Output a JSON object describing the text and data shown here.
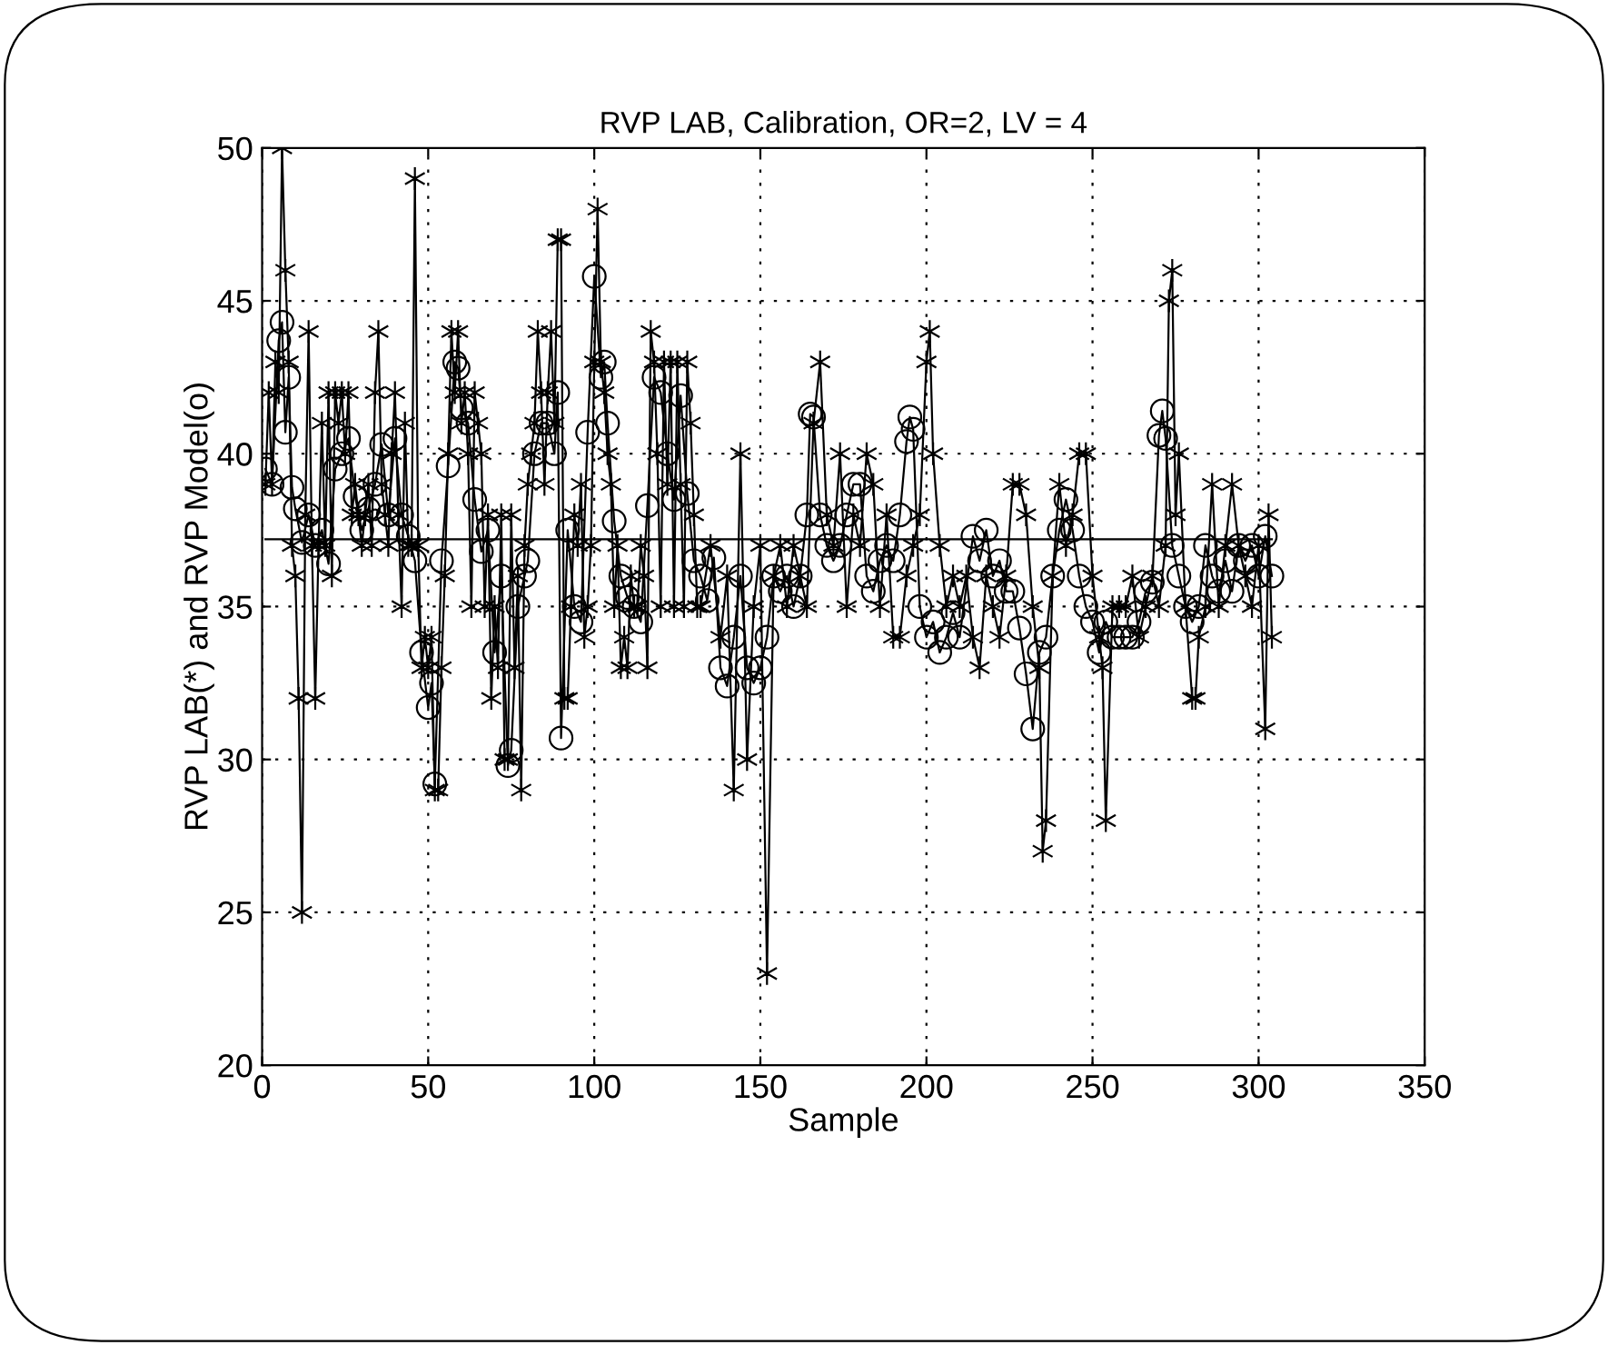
{
  "chart_data": {
    "type": "line",
    "title": "RVP LAB, Calibration, OR=2, LV = 4",
    "xlabel": "Sample",
    "ylabel": "RVP LAB(*) and RVP Model(o)",
    "xlim": [
      0,
      350
    ],
    "ylim": [
      20,
      50
    ],
    "xticks": [
      0,
      50,
      100,
      150,
      200,
      250,
      300,
      350
    ],
    "yticks": [
      20,
      25,
      30,
      35,
      40,
      45,
      50
    ],
    "grid": true,
    "line_style": "solid",
    "series": [
      {
        "color": "#000000",
        "marker": "cross",
        "x": [
          1,
          2,
          3,
          4,
          5,
          6,
          7,
          8,
          9,
          10,
          11,
          12,
          13,
          14,
          15,
          16,
          17,
          18,
          19,
          20,
          21,
          22,
          23,
          24,
          25,
          26,
          27,
          28,
          29,
          30,
          31,
          32,
          33,
          34,
          35,
          36,
          37,
          38,
          39,
          40,
          41,
          42,
          43,
          44,
          45,
          46,
          47,
          48,
          49,
          50,
          51,
          52,
          53,
          54,
          55,
          56,
          57,
          58,
          59,
          60,
          61,
          62,
          63,
          64,
          65,
          66,
          67,
          68,
          69,
          70,
          71,
          72,
          73,
          74,
          75,
          76,
          77,
          78,
          79,
          80,
          81,
          82,
          83,
          84,
          85,
          86,
          87,
          88,
          89,
          90,
          91,
          92,
          93,
          94,
          95,
          96,
          97,
          98,
          99,
          100,
          101,
          102,
          103,
          104,
          105,
          106,
          107,
          108,
          109,
          110,
          111,
          112,
          113,
          114,
          115,
          116,
          117,
          118,
          119,
          120,
          121,
          122,
          123,
          124,
          125,
          126,
          127,
          128,
          129,
          130,
          131,
          132,
          135,
          138,
          140,
          142,
          144,
          146,
          148,
          150,
          152,
          154,
          156,
          158,
          160,
          162,
          164,
          166,
          168,
          170,
          172,
          174,
          176,
          178,
          180,
          182,
          184,
          186,
          188,
          190,
          192,
          194,
          196,
          198,
          200,
          201,
          202,
          204,
          206,
          208,
          210,
          212,
          214,
          216,
          218,
          220,
          222,
          224,
          226,
          228,
          230,
          232,
          234,
          235,
          236,
          238,
          240,
          242,
          244,
          246,
          248,
          250,
          252,
          253,
          254,
          256,
          258,
          260,
          262,
          264,
          266,
          268,
          270,
          272,
          273,
          274,
          275,
          276,
          278,
          280,
          281,
          282,
          284,
          286,
          288,
          290,
          292,
          294,
          296,
          298,
          300,
          302,
          303,
          304
        ],
        "values": [
          39,
          42,
          39,
          43,
          42,
          50,
          46,
          43,
          37,
          36,
          32,
          25,
          38,
          44,
          37,
          32,
          37,
          41,
          37,
          42,
          36,
          42,
          41,
          42,
          40,
          42,
          38,
          39,
          38,
          37,
          38,
          39,
          37,
          42,
          44,
          39,
          38,
          37,
          40,
          42,
          38,
          35,
          41,
          37,
          37,
          49,
          37,
          33,
          34,
          33,
          34,
          29,
          29,
          33,
          36,
          40,
          44,
          42,
          44,
          41,
          42,
          40,
          35,
          42,
          41,
          40,
          35,
          38,
          32,
          35,
          33,
          38,
          30,
          30,
          38,
          33,
          36,
          29,
          37,
          39,
          40,
          41,
          44,
          42,
          39,
          42,
          44,
          41,
          47,
          47,
          32,
          32,
          35,
          38,
          37,
          39,
          34,
          35,
          37,
          43,
          48,
          43,
          42,
          40,
          39,
          35,
          37,
          33,
          34,
          33,
          36,
          35,
          35,
          37,
          36,
          33,
          44,
          43,
          40,
          35,
          43,
          39,
          43,
          35,
          43,
          39,
          35,
          43,
          41,
          38,
          35,
          35,
          37,
          34,
          36,
          29,
          40,
          30,
          35,
          37,
          23,
          36,
          37,
          35,
          37,
          36,
          35,
          41,
          43,
          38,
          37,
          40,
          35,
          38,
          37,
          40,
          39,
          35,
          38,
          34,
          34,
          36,
          37,
          38,
          43,
          44,
          40,
          37,
          35,
          36,
          35,
          36,
          34,
          33,
          36,
          35,
          34,
          36,
          39,
          39,
          38,
          35,
          33,
          27,
          28,
          36,
          39,
          37,
          38,
          40,
          40,
          36,
          34,
          33,
          28,
          35,
          35,
          35,
          36,
          34,
          35,
          36,
          35,
          37,
          45,
          46,
          38,
          40,
          35,
          32,
          32,
          34,
          35,
          39,
          35,
          37,
          39,
          37,
          36,
          35,
          37,
          31,
          38,
          34
        ]
      },
      {
        "color": "#000000",
        "marker": "circle",
        "x": [
          1,
          3,
          5,
          6,
          7,
          8,
          9,
          10,
          12,
          14,
          16,
          18,
          20,
          22,
          24,
          26,
          28,
          30,
          32,
          34,
          36,
          38,
          40,
          42,
          44,
          46,
          48,
          50,
          51,
          52,
          54,
          56,
          58,
          59,
          60,
          62,
          64,
          66,
          68,
          70,
          72,
          74,
          75,
          77,
          79,
          80,
          82,
          84,
          86,
          88,
          89,
          90,
          92,
          94,
          96,
          98,
          100,
          102,
          103,
          104,
          106,
          108,
          110,
          112,
          114,
          116,
          118,
          120,
          122,
          124,
          126,
          128,
          130,
          132,
          134,
          136,
          138,
          140,
          142,
          144,
          146,
          148,
          150,
          152,
          154,
          156,
          158,
          160,
          162,
          164,
          165,
          166,
          168,
          170,
          172,
          174,
          176,
          178,
          180,
          182,
          184,
          186,
          188,
          190,
          192,
          194,
          195,
          196,
          198,
          200,
          202,
          204,
          206,
          208,
          210,
          214,
          216,
          218,
          220,
          222,
          224,
          226,
          228,
          230,
          232,
          234,
          236,
          238,
          240,
          242,
          244,
          246,
          248,
          250,
          252,
          254,
          256,
          258,
          260,
          262,
          264,
          266,
          268,
          270,
          271,
          272,
          274,
          276,
          278,
          280,
          282,
          284,
          286,
          288,
          290,
          292,
          294,
          296,
          298,
          300,
          302,
          304
        ],
        "values": [
          39.5,
          39,
          43.7,
          44.3,
          40.7,
          42.5,
          38.9,
          38.2,
          37.1,
          38,
          37,
          37.5,
          36.4,
          39.5,
          40,
          40.5,
          38.6,
          37.5,
          38.2,
          39,
          40.3,
          38,
          40.5,
          38,
          37.3,
          36.5,
          33.5,
          31.7,
          32.5,
          29.2,
          36.5,
          39.6,
          43,
          42.8,
          41.5,
          41,
          38.5,
          36.8,
          37.5,
          33.5,
          36,
          29.8,
          30.3,
          35,
          36,
          36.5,
          40,
          41,
          41,
          40,
          42,
          30.7,
          37.5,
          35,
          34.5,
          40.7,
          45.8,
          42.5,
          43,
          41,
          37.8,
          36,
          35.3,
          35,
          34.5,
          38.3,
          42.5,
          42,
          40,
          38.5,
          41.9,
          38.7,
          36.5,
          36,
          35.2,
          36.6,
          33,
          32.4,
          34,
          36,
          33,
          32.5,
          33,
          34,
          36,
          35.5,
          36,
          35,
          36,
          38,
          41.3,
          41.2,
          38,
          37,
          36.5,
          37,
          38,
          39,
          39,
          36,
          35.5,
          36.5,
          37,
          36.5,
          38,
          40.4,
          41.2,
          40.8,
          35,
          34,
          34.5,
          33.5,
          34,
          34.8,
          34,
          37.3,
          36.5,
          37.5,
          36,
          36.5,
          35.5,
          35.5,
          34.3,
          32.8,
          31,
          33.5,
          34,
          36,
          37.5,
          38.5,
          37.5,
          36,
          35,
          34.5,
          33.5,
          34.5,
          34,
          34,
          34,
          34,
          34.5,
          35.5,
          35.8,
          40.6,
          41.4,
          40.5,
          37,
          36,
          35,
          34.5,
          35,
          37,
          36,
          35.5,
          36.5,
          35.5,
          37,
          36.5,
          37,
          36,
          37.3,
          36
        ]
      },
      {
        "color": "#000000",
        "marker": "none",
        "x": [
          1,
          304
        ],
        "values": [
          37.2,
          37.2
        ]
      }
    ]
  }
}
